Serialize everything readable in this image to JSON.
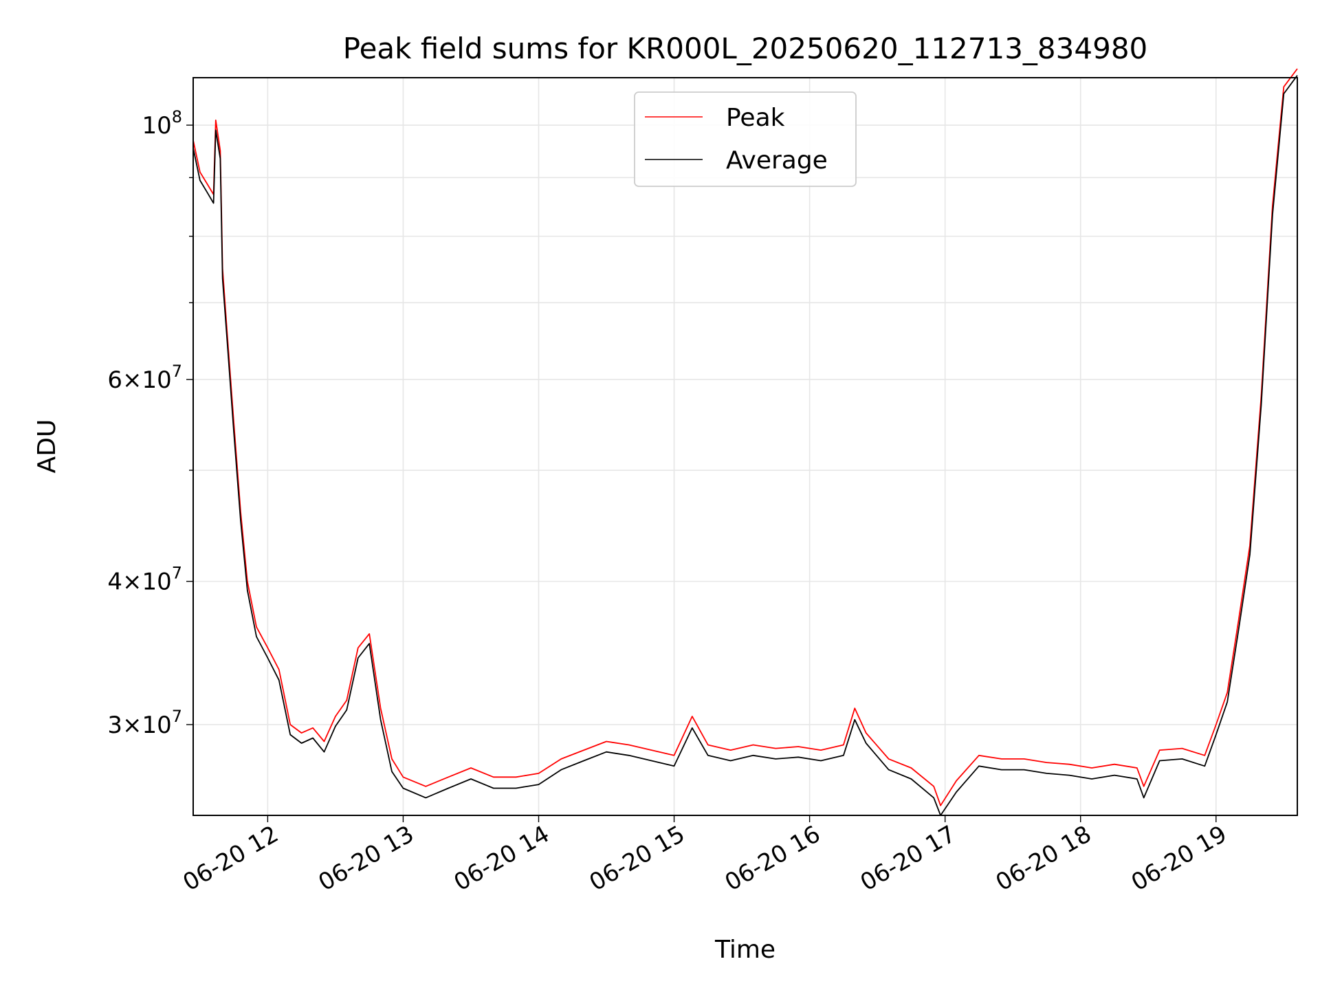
{
  "chart_data": {
    "type": "line",
    "title": "Peak field sums for KR000L_20250620_112713_834980",
    "xlabel": "Time",
    "ylabel": "ADU",
    "x_axis": {
      "kind": "datetime",
      "range": [
        "2025-06-20T11:27",
        "2025-06-20T19:36"
      ],
      "ticks": [
        {
          "value": "2025-06-20T12:00",
          "label": "06-20 12"
        },
        {
          "value": "2025-06-20T13:00",
          "label": "06-20 13"
        },
        {
          "value": "2025-06-20T14:00",
          "label": "06-20 14"
        },
        {
          "value": "2025-06-20T15:00",
          "label": "06-20 15"
        },
        {
          "value": "2025-06-20T16:00",
          "label": "06-20 16"
        },
        {
          "value": "2025-06-20T17:00",
          "label": "06-20 17"
        },
        {
          "value": "2025-06-20T18:00",
          "label": "06-20 18"
        },
        {
          "value": "2025-06-20T19:00",
          "label": "06-20 19"
        }
      ]
    },
    "y_axis": {
      "scale": "log",
      "range": [
        25000000,
        110000000
      ],
      "major_ticks": [
        {
          "value": 30000000,
          "mant": "3",
          "exp": "7"
        },
        {
          "value": 40000000,
          "mant": "4",
          "exp": "7"
        },
        {
          "value": 60000000,
          "mant": "6",
          "exp": "7"
        },
        {
          "value": 100000000,
          "mant": "",
          "exp": "8"
        }
      ],
      "minor_ticks": [
        50000000,
        70000000,
        80000000,
        90000000
      ]
    },
    "grid": true,
    "legend": {
      "position": "upper center"
    },
    "series": [
      {
        "name": "Peak",
        "color": "#ff0000",
        "x": [
          "2025-06-20T11:27",
          "2025-06-20T11:30",
          "2025-06-20T11:33",
          "2025-06-20T11:36",
          "2025-06-20T11:37",
          "2025-06-20T11:39",
          "2025-06-20T11:40",
          "2025-06-20T11:42",
          "2025-06-20T11:45",
          "2025-06-20T11:48",
          "2025-06-20T11:51",
          "2025-06-20T11:55",
          "2025-06-20T12:00",
          "2025-06-20T12:05",
          "2025-06-20T12:10",
          "2025-06-20T12:15",
          "2025-06-20T12:20",
          "2025-06-20T12:25",
          "2025-06-20T12:30",
          "2025-06-20T12:35",
          "2025-06-20T12:40",
          "2025-06-20T12:45",
          "2025-06-20T12:50",
          "2025-06-20T12:55",
          "2025-06-20T13:00",
          "2025-06-20T13:10",
          "2025-06-20T13:20",
          "2025-06-20T13:30",
          "2025-06-20T13:40",
          "2025-06-20T13:50",
          "2025-06-20T14:00",
          "2025-06-20T14:10",
          "2025-06-20T14:20",
          "2025-06-20T14:30",
          "2025-06-20T14:40",
          "2025-06-20T14:50",
          "2025-06-20T15:00",
          "2025-06-20T15:08",
          "2025-06-20T15:15",
          "2025-06-20T15:25",
          "2025-06-20T15:35",
          "2025-06-20T15:45",
          "2025-06-20T15:55",
          "2025-06-20T16:05",
          "2025-06-20T16:15",
          "2025-06-20T16:20",
          "2025-06-20T16:25",
          "2025-06-20T16:35",
          "2025-06-20T16:45",
          "2025-06-20T16:55",
          "2025-06-20T16:58",
          "2025-06-20T17:05",
          "2025-06-20T17:15",
          "2025-06-20T17:25",
          "2025-06-20T17:35",
          "2025-06-20T17:45",
          "2025-06-20T17:55",
          "2025-06-20T18:05",
          "2025-06-20T18:15",
          "2025-06-20T18:25",
          "2025-06-20T18:28",
          "2025-06-20T18:35",
          "2025-06-20T18:45",
          "2025-06-20T18:55",
          "2025-06-20T19:00",
          "2025-06-20T19:05",
          "2025-06-20T19:10",
          "2025-06-20T19:15",
          "2025-06-20T19:20",
          "2025-06-20T19:25",
          "2025-06-20T19:30",
          "2025-06-20T19:36"
        ],
        "values": [
          97000000,
          91000000,
          89000000,
          87000000,
          101000000,
          95000000,
          75000000,
          66000000,
          55000000,
          46000000,
          40000000,
          36500000,
          35000000,
          33500000,
          30000000,
          29500000,
          29800000,
          29000000,
          30500000,
          31500000,
          35000000,
          36000000,
          31000000,
          28000000,
          27000000,
          26500000,
          27000000,
          27500000,
          27000000,
          27000000,
          27200000,
          28000000,
          28500000,
          29000000,
          28800000,
          28500000,
          28200000,
          30500000,
          28800000,
          28500000,
          28800000,
          28600000,
          28700000,
          28500000,
          28800000,
          31000000,
          29500000,
          28000000,
          27500000,
          26500000,
          25500000,
          26800000,
          28200000,
          28000000,
          28000000,
          27800000,
          27700000,
          27500000,
          27700000,
          27500000,
          26500000,
          28500000,
          28600000,
          28200000,
          30000000,
          32000000,
          37000000,
          43000000,
          58000000,
          85000000,
          108000000,
          112000000
        ]
      },
      {
        "name": "Average",
        "color": "#000000",
        "x": [
          "2025-06-20T11:27",
          "2025-06-20T11:30",
          "2025-06-20T11:33",
          "2025-06-20T11:36",
          "2025-06-20T11:37",
          "2025-06-20T11:39",
          "2025-06-20T11:40",
          "2025-06-20T11:42",
          "2025-06-20T11:45",
          "2025-06-20T11:48",
          "2025-06-20T11:51",
          "2025-06-20T11:55",
          "2025-06-20T12:00",
          "2025-06-20T12:05",
          "2025-06-20T12:10",
          "2025-06-20T12:15",
          "2025-06-20T12:20",
          "2025-06-20T12:25",
          "2025-06-20T12:30",
          "2025-06-20T12:35",
          "2025-06-20T12:40",
          "2025-06-20T12:45",
          "2025-06-20T12:50",
          "2025-06-20T12:55",
          "2025-06-20T13:00",
          "2025-06-20T13:10",
          "2025-06-20T13:20",
          "2025-06-20T13:30",
          "2025-06-20T13:40",
          "2025-06-20T13:50",
          "2025-06-20T14:00",
          "2025-06-20T14:10",
          "2025-06-20T14:20",
          "2025-06-20T14:30",
          "2025-06-20T14:40",
          "2025-06-20T14:50",
          "2025-06-20T15:00",
          "2025-06-20T15:08",
          "2025-06-20T15:15",
          "2025-06-20T15:25",
          "2025-06-20T15:35",
          "2025-06-20T15:45",
          "2025-06-20T15:55",
          "2025-06-20T16:05",
          "2025-06-20T16:15",
          "2025-06-20T16:20",
          "2025-06-20T16:25",
          "2025-06-20T16:35",
          "2025-06-20T16:45",
          "2025-06-20T16:55",
          "2025-06-20T16:58",
          "2025-06-20T17:05",
          "2025-06-20T17:15",
          "2025-06-20T17:25",
          "2025-06-20T17:35",
          "2025-06-20T17:45",
          "2025-06-20T17:55",
          "2025-06-20T18:05",
          "2025-06-20T18:15",
          "2025-06-20T18:25",
          "2025-06-20T18:28",
          "2025-06-20T18:35",
          "2025-06-20T18:45",
          "2025-06-20T18:55",
          "2025-06-20T19:00",
          "2025-06-20T19:05",
          "2025-06-20T19:10",
          "2025-06-20T19:15",
          "2025-06-20T19:20",
          "2025-06-20T19:25",
          "2025-06-20T19:30",
          "2025-06-20T19:36"
        ],
        "values": [
          95500000,
          89500000,
          87500000,
          85500000,
          99000000,
          93500000,
          73500000,
          65000000,
          54000000,
          45200000,
          39300000,
          35800000,
          34300000,
          32800000,
          29400000,
          28900000,
          29200000,
          28400000,
          29900000,
          30900000,
          34300000,
          35300000,
          30300000,
          27300000,
          26400000,
          25900000,
          26400000,
          26900000,
          26400000,
          26400000,
          26600000,
          27400000,
          27900000,
          28400000,
          28200000,
          27900000,
          27600000,
          29800000,
          28200000,
          27900000,
          28200000,
          28000000,
          28100000,
          27900000,
          28200000,
          30300000,
          28900000,
          27400000,
          26900000,
          25900000,
          25000000,
          26200000,
          27600000,
          27400000,
          27400000,
          27200000,
          27100000,
          26900000,
          27100000,
          26900000,
          25900000,
          27900000,
          28000000,
          27600000,
          29400000,
          31400000,
          36300000,
          42200000,
          57000000,
          83500000,
          106500000,
          110500000
        ]
      }
    ]
  }
}
